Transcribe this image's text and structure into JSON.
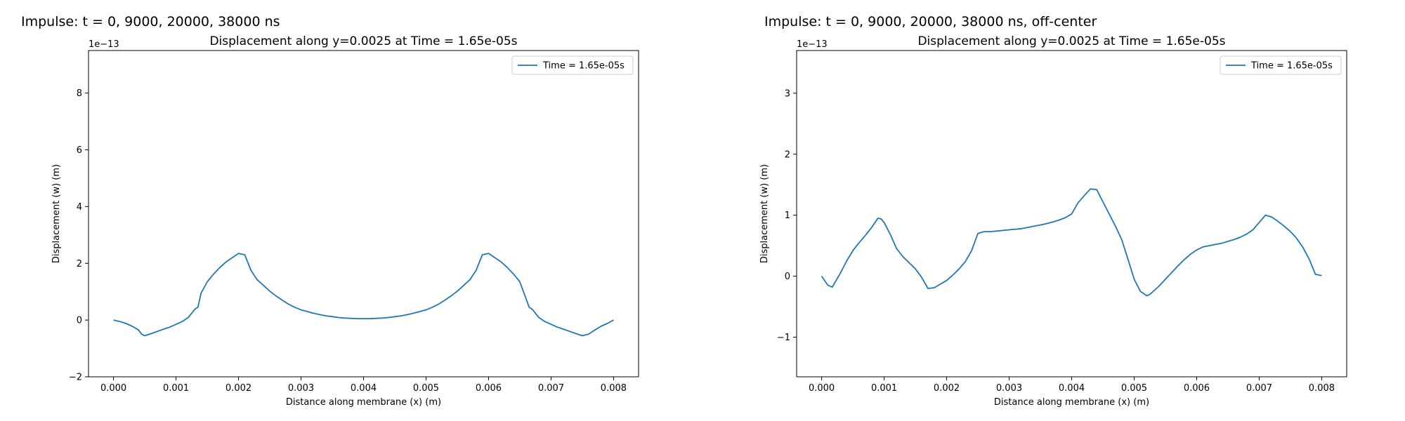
{
  "headings": [
    "Impulse: t = 0, 9000, 20000, 38000 ns",
    "Impulse: t = 0, 9000, 20000, 38000 ns, off-center"
  ],
  "chart_data": [
    {
      "type": "line",
      "title": "Displacement along y=0.0025 at Time = 1.65e-05s",
      "xlabel": "Distance along membrane (x) (m)",
      "ylabel": "Displacement (w) (m)",
      "y_offset_label": "1e−13",
      "xlim": [
        -0.0004,
        0.0084
      ],
      "ylim": [
        -2.0,
        9.5
      ],
      "x_ticks": [
        0.0,
        0.001,
        0.002,
        0.003,
        0.004,
        0.005,
        0.006,
        0.007,
        0.008
      ],
      "x_tick_labels": [
        "0.000",
        "0.001",
        "0.002",
        "0.003",
        "0.004",
        "0.005",
        "0.006",
        "0.007",
        "0.008"
      ],
      "y_ticks": [
        -2,
        0,
        2,
        4,
        6,
        8
      ],
      "y_tick_labels": [
        "−2",
        "0",
        "2",
        "4",
        "6",
        "8"
      ],
      "grid": false,
      "legend_position": "top-right",
      "series": [
        {
          "name": "Time = 1.65e-05s",
          "color": "#1f77b4",
          "x": [
            0.0,
            0.0001,
            0.0002,
            0.0003,
            0.0004,
            0.00045,
            0.0005,
            0.0006,
            0.0007,
            0.0008,
            0.0009,
            0.001,
            0.0011,
            0.0012,
            0.0013,
            0.00135,
            0.0014,
            0.0015,
            0.0016,
            0.0017,
            0.0018,
            0.0019,
            0.002,
            0.0021,
            0.0022,
            0.00225,
            0.0023,
            0.0024,
            0.0025,
            0.0026,
            0.0027,
            0.0028,
            0.0029,
            0.003,
            0.0031,
            0.0032,
            0.0033,
            0.0034,
            0.0035,
            0.0036,
            0.0037,
            0.0038,
            0.0039,
            0.004,
            0.0041,
            0.0042,
            0.0043,
            0.0044,
            0.0045,
            0.0046,
            0.0047,
            0.0048,
            0.0049,
            0.005,
            0.0051,
            0.0052,
            0.0053,
            0.0054,
            0.0055,
            0.0056,
            0.0057,
            0.0058,
            0.0059,
            0.006,
            0.0061,
            0.0062,
            0.0063,
            0.0064,
            0.0065,
            0.00665,
            0.0067,
            0.0068,
            0.0069,
            0.007,
            0.0071,
            0.0072,
            0.0073,
            0.0074,
            0.0075,
            0.0076,
            0.0077,
            0.0078,
            0.0079,
            0.008
          ],
          "values": [
            0.0,
            -0.05,
            -0.12,
            -0.22,
            -0.35,
            -0.5,
            -0.55,
            -0.48,
            -0.4,
            -0.32,
            -0.25,
            -0.15,
            -0.05,
            0.1,
            0.38,
            0.45,
            0.95,
            1.35,
            1.62,
            1.85,
            2.05,
            2.2,
            2.35,
            2.3,
            1.75,
            1.58,
            1.42,
            1.22,
            1.02,
            0.85,
            0.7,
            0.56,
            0.45,
            0.36,
            0.3,
            0.24,
            0.19,
            0.15,
            0.12,
            0.09,
            0.07,
            0.06,
            0.05,
            0.05,
            0.05,
            0.06,
            0.07,
            0.09,
            0.12,
            0.15,
            0.19,
            0.24,
            0.3,
            0.36,
            0.45,
            0.56,
            0.7,
            0.85,
            1.02,
            1.22,
            1.42,
            1.75,
            2.3,
            2.35,
            2.2,
            2.05,
            1.85,
            1.62,
            1.35,
            0.45,
            0.38,
            0.1,
            -0.05,
            -0.15,
            -0.25,
            -0.32,
            -0.4,
            -0.48,
            -0.55,
            -0.5,
            -0.35,
            -0.22,
            -0.12,
            0.0
          ]
        }
      ]
    },
    {
      "type": "line",
      "title": "Displacement along y=0.0025 at Time = 1.65e-05s",
      "xlabel": "Distance along membrane (x) (m)",
      "ylabel": "Displacement (w) (m)",
      "y_offset_label": "1e−13",
      "xlim": [
        -0.0004,
        0.0084
      ],
      "ylim": [
        -1.65,
        3.7
      ],
      "x_ticks": [
        0.0,
        0.001,
        0.002,
        0.003,
        0.004,
        0.005,
        0.006,
        0.007,
        0.008
      ],
      "x_tick_labels": [
        "0.000",
        "0.001",
        "0.002",
        "0.003",
        "0.004",
        "0.005",
        "0.006",
        "0.007",
        "0.008"
      ],
      "y_ticks": [
        -1,
        0,
        1,
        2,
        3
      ],
      "y_tick_labels": [
        "−1",
        "0",
        "1",
        "2",
        "3"
      ],
      "grid": false,
      "legend_position": "top-right",
      "series": [
        {
          "name": "Time = 1.65e-05s",
          "color": "#1f77b4",
          "x": [
            0.0,
            0.0001,
            0.00017,
            0.0003,
            0.0004,
            0.0005,
            0.0006,
            0.0007,
            0.0008,
            0.0009,
            0.00095,
            0.001,
            0.0011,
            0.0012,
            0.0013,
            0.0014,
            0.0015,
            0.0016,
            0.0017,
            0.0018,
            0.00185,
            0.002,
            0.0021,
            0.0022,
            0.0023,
            0.0024,
            0.0025,
            0.0026,
            0.0027,
            0.0028,
            0.0029,
            0.003,
            0.0031,
            0.0032,
            0.0033,
            0.0034,
            0.0035,
            0.0036,
            0.0037,
            0.0038,
            0.0039,
            0.004,
            0.0041,
            0.0042,
            0.0043,
            0.0044,
            0.0045,
            0.0046,
            0.0047,
            0.0048,
            0.0049,
            0.005,
            0.0051,
            0.0052,
            0.00525,
            0.0054,
            0.0055,
            0.0056,
            0.0057,
            0.0058,
            0.0059,
            0.006,
            0.0061,
            0.0062,
            0.0063,
            0.0064,
            0.0065,
            0.0066,
            0.0067,
            0.0068,
            0.0069,
            0.007,
            0.0071,
            0.0072,
            0.0073,
            0.0074,
            0.0075,
            0.0076,
            0.0077,
            0.0078,
            0.0079,
            0.008
          ],
          "values": [
            0.0,
            -0.15,
            -0.18,
            0.05,
            0.25,
            0.42,
            0.55,
            0.67,
            0.8,
            0.95,
            0.94,
            0.88,
            0.68,
            0.45,
            0.32,
            0.22,
            0.12,
            -0.02,
            -0.2,
            -0.19,
            -0.16,
            -0.07,
            0.02,
            0.12,
            0.24,
            0.42,
            0.7,
            0.73,
            0.73,
            0.74,
            0.75,
            0.76,
            0.77,
            0.78,
            0.8,
            0.82,
            0.84,
            0.86,
            0.89,
            0.92,
            0.96,
            1.02,
            1.2,
            1.32,
            1.43,
            1.42,
            1.22,
            1.02,
            0.82,
            0.6,
            0.28,
            -0.05,
            -0.25,
            -0.32,
            -0.3,
            -0.16,
            -0.05,
            0.06,
            0.17,
            0.27,
            0.36,
            0.43,
            0.48,
            0.5,
            0.52,
            0.54,
            0.57,
            0.6,
            0.64,
            0.69,
            0.76,
            0.88,
            1.0,
            0.97,
            0.9,
            0.82,
            0.73,
            0.62,
            0.47,
            0.28,
            0.03,
            0.01
          ]
        }
      ]
    }
  ]
}
